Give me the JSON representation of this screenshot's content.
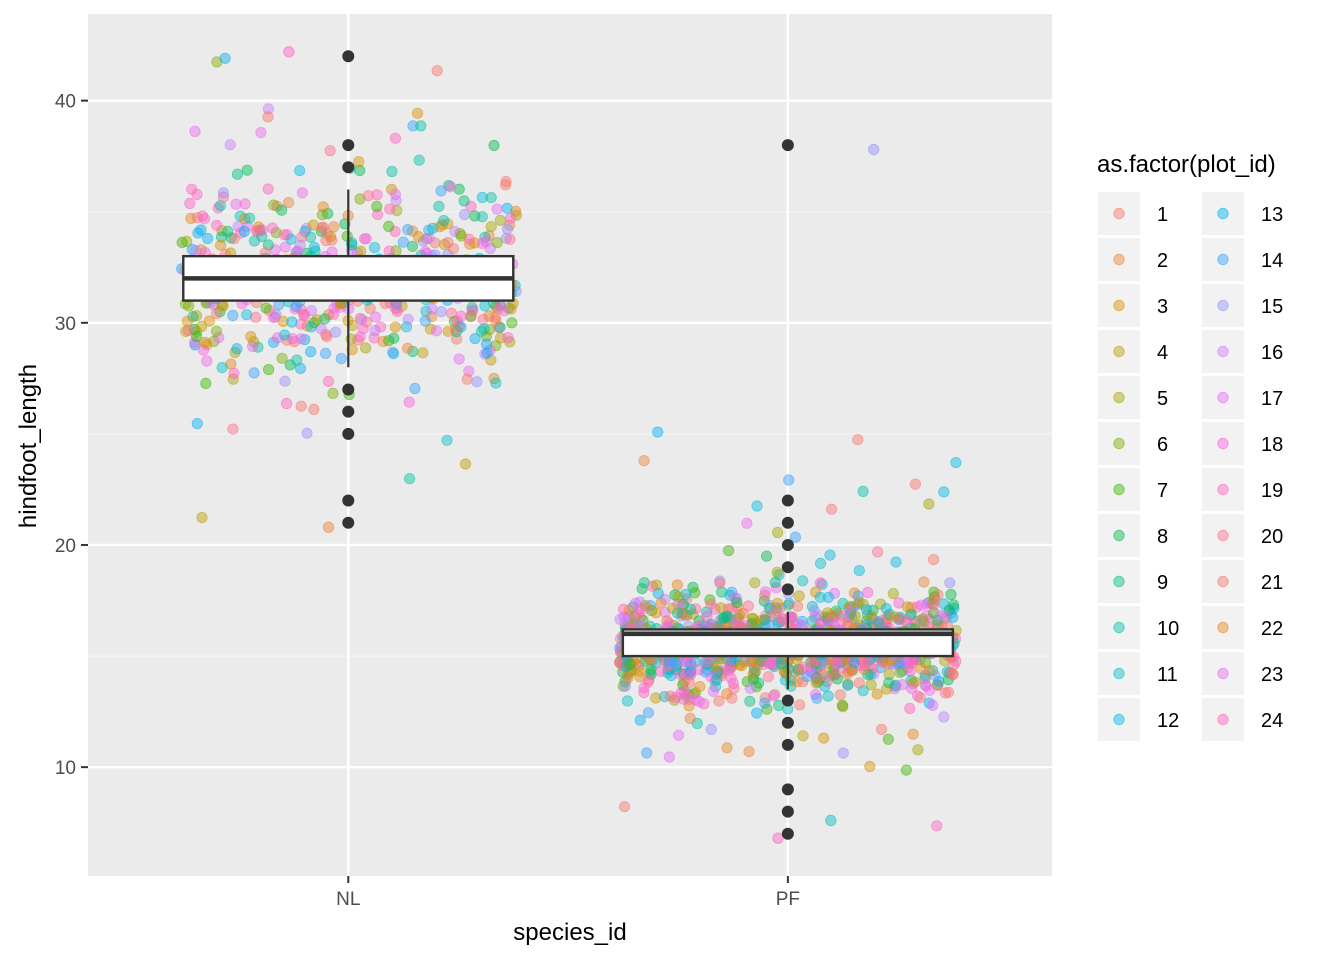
{
  "chart_data": {
    "type": "boxplot+jitter",
    "xlabel": "species_id",
    "ylabel": "hindfoot_length",
    "categories": [
      "NL",
      "PF"
    ],
    "ylim": [
      5.1,
      43.9
    ],
    "y_ticks": [
      10,
      20,
      30,
      40
    ],
    "grid": true,
    "legend": {
      "title": "as.factor(plot_id)",
      "position": "right",
      "entries": [
        "1",
        "2",
        "3",
        "4",
        "5",
        "6",
        "7",
        "8",
        "9",
        "10",
        "11",
        "12",
        "13",
        "14",
        "15",
        "16",
        "17",
        "18",
        "19",
        "20",
        "21",
        "22",
        "23",
        "24"
      ],
      "colors": [
        "#F8766D",
        "#EA8331",
        "#D89000",
        "#C09B00",
        "#A3A500",
        "#7CAE00",
        "#39B600",
        "#00BB4E",
        "#00BF7D",
        "#00C1A3",
        "#00BFC4",
        "#00BAE0",
        "#00B0F6",
        "#35A2FF",
        "#9590FF",
        "#C77CFF",
        "#E76BF3",
        "#FA62DB",
        "#FF62BC",
        "#FF6C91",
        "#F8766D",
        "#E7861B",
        "#ED68ED",
        "#FF61C3"
      ]
    },
    "boxes": [
      {
        "category": "NL",
        "min": 28,
        "q1": 31,
        "median": 32,
        "q3": 33,
        "max": 36,
        "outliers": [
          42,
          38,
          37,
          27,
          26,
          25,
          22,
          21
        ]
      },
      {
        "category": "PF",
        "min": 13.5,
        "q1": 15,
        "median": 16,
        "q3": 16.2,
        "max": 17,
        "outliers": [
          38,
          22,
          21,
          20,
          19,
          18,
          13,
          12,
          11,
          9,
          8,
          7
        ]
      }
    ],
    "jitter_points": {
      "NL": {
        "count": 620,
        "center": 32,
        "spread": 2.0,
        "range": [
          20.8,
          42.2
        ]
      },
      "PF": {
        "count": 1100,
        "center": 15.5,
        "spread": 1.1,
        "range": [
          6.8,
          37.8
        ]
      }
    }
  }
}
